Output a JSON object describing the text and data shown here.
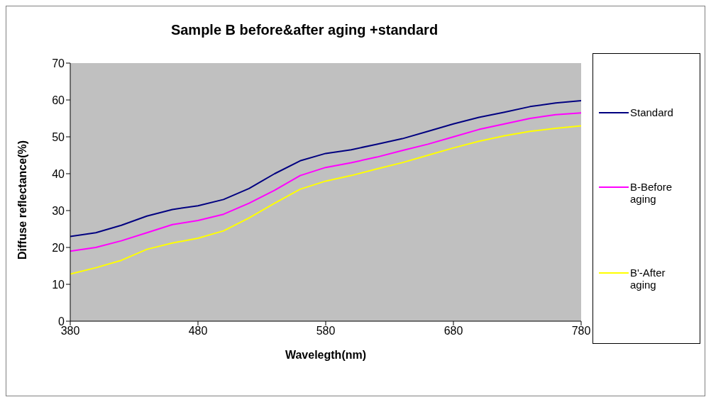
{
  "chart_data": {
    "type": "line",
    "title": "Sample B before&after aging +standard",
    "xlabel": "Wavelegth(nm)",
    "ylabel": "Diffuse reflectance(%)",
    "x": [
      380,
      400,
      420,
      440,
      460,
      480,
      500,
      520,
      540,
      560,
      580,
      600,
      620,
      640,
      660,
      680,
      700,
      720,
      740,
      760,
      780
    ],
    "series": [
      {
        "name": "Standard",
        "color": "#000080",
        "values": [
          23,
          24,
          26,
          28.5,
          30.3,
          31.3,
          33,
          36,
          40,
          43.5,
          45.5,
          46.5,
          48,
          49.5,
          51.5,
          53.5,
          55.3,
          56.7,
          58.2,
          59.2,
          59.8
        ]
      },
      {
        "name": "B-Before aging",
        "color": "#ff00ff",
        "values": [
          19,
          20,
          21.8,
          24,
          26.2,
          27.3,
          29,
          32,
          35.5,
          39.5,
          41.7,
          43,
          44.5,
          46.3,
          48,
          50,
          52,
          53.5,
          55,
          56,
          56.5
        ]
      },
      {
        "name": "B'-After aging",
        "color": "#ffff00",
        "values": [
          12.8,
          14.5,
          16.5,
          19.5,
          21.2,
          22.5,
          24.5,
          28,
          32,
          35.8,
          38,
          39.5,
          41.3,
          43,
          45,
          47,
          48.8,
          50.3,
          51.5,
          52.3,
          53
        ]
      }
    ],
    "xlim": [
      380,
      780
    ],
    "xticks": [
      380,
      480,
      580,
      680,
      780
    ],
    "ylim": [
      0,
      70
    ],
    "yticks": [
      0,
      10,
      20,
      30,
      40,
      50,
      60,
      70
    ],
    "grid": false,
    "legend": "right",
    "marker": "none",
    "line_style": "solid"
  }
}
